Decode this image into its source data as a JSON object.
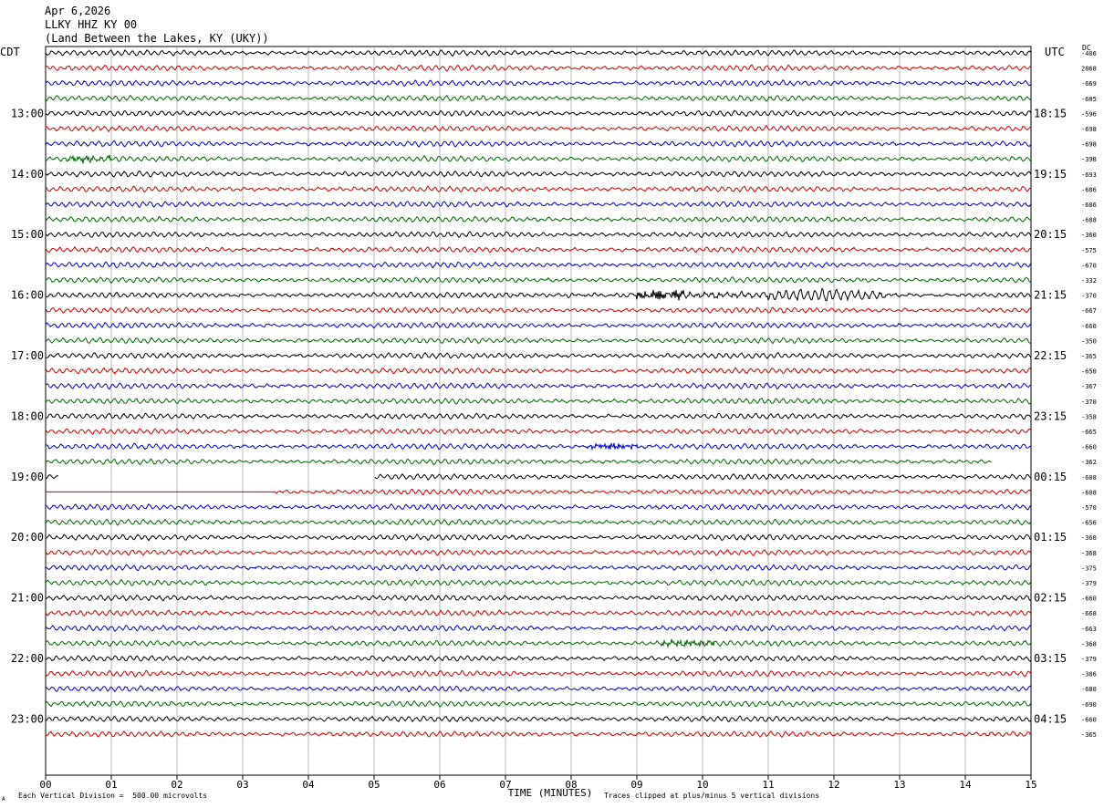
{
  "header": {
    "date": "Apr 6,2026",
    "station": "LLKY HHZ KY 00",
    "location": "(Land Between the Lakes, KY (UKY))"
  },
  "left_axis_label": "CDT",
  "right_axis_label": "UTC",
  "dc_label": "DC",
  "footer": {
    "scale_note": "Each Vertical Division =  500.00 microvolts",
    "clip_note": "Traces clipped at plus/minus 5 vertical divisions",
    "corner_mark": "A"
  },
  "colors": {
    "trace_cycle": [
      "#000000",
      "#cc0000",
      "#0000cc",
      "#006600"
    ],
    "grid": "#999999"
  },
  "chart_data": {
    "type": "line",
    "title": "",
    "xlabel": "TIME (MINUTES)",
    "x_ticks": [
      "00",
      "01",
      "02",
      "03",
      "04",
      "05",
      "06",
      "07",
      "08",
      "09",
      "10",
      "11",
      "12",
      "13",
      "14",
      "15"
    ],
    "xlim": [
      0,
      15
    ],
    "left_hour_labels": [
      "13:00",
      "14:00",
      "15:00",
      "16:00",
      "17:00",
      "18:00",
      "19:00",
      "20:00",
      "21:00",
      "22:00",
      "23:00"
    ],
    "right_hour_labels": [
      "18:15",
      "19:15",
      "20:15",
      "21:15",
      "22:15",
      "23:15",
      "00:15",
      "01:15",
      "02:15",
      "03:15",
      "04:15"
    ],
    "first_labeled_row": 4,
    "rows_per_hour": 4,
    "dc_offsets": [
      "-406",
      "2868",
      "-669",
      "-605",
      "-596",
      "-698",
      "-698",
      "-398",
      "-693",
      "-686",
      "-686",
      "-688",
      "-360",
      "-575",
      "-670",
      "-332",
      "-370",
      "-667",
      "-660",
      "-350",
      "-365",
      "-650",
      "-367",
      "-370",
      "-358",
      "-665",
      "-660",
      "-362",
      "-608",
      "-608",
      "-570",
      "-656",
      "-360",
      "-368",
      "-375",
      "-379",
      "-660",
      "-668",
      "-663",
      "-368",
      "-379",
      "-386",
      "-680",
      "-690",
      "-660",
      "-365"
    ],
    "events": [
      {
        "row": 7,
        "start_min": 0.3,
        "end_min": 1.0,
        "amp": 2.2,
        "freq": 5.0
      },
      {
        "row": 16,
        "start_min": 7.6,
        "end_min": 9.0,
        "amp": 0.8,
        "freq": 2.0
      },
      {
        "row": 16,
        "start_min": 9.0,
        "end_min": 9.8,
        "amp": 4.2,
        "freq": 6.0
      },
      {
        "row": 16,
        "start_min": 9.8,
        "end_min": 11.0,
        "amp": 1.2,
        "freq": 4.0
      },
      {
        "row": 16,
        "start_min": 11.0,
        "end_min": 12.8,
        "amp": 3.5,
        "freq": 1.6
      },
      {
        "row": 16,
        "start_min": 12.8,
        "end_min": 14.0,
        "amp": 0.8,
        "freq": 1.6
      },
      {
        "row": 26,
        "start_min": 8.2,
        "end_min": 9.0,
        "amp": 2.4,
        "freq": 5.0
      },
      {
        "row": 39,
        "start_min": 9.3,
        "end_min": 10.2,
        "amp": 2.2,
        "freq": 5.0
      }
    ],
    "gaps": [
      {
        "row": 27,
        "start_min": 14.4,
        "end_min": 15.0
      },
      {
        "row": 28,
        "start_min": 0.2,
        "end_min": 5.0
      },
      {
        "row": 29,
        "start_min": 0.0,
        "end_min": 3.5,
        "flat": true
      }
    ]
  }
}
